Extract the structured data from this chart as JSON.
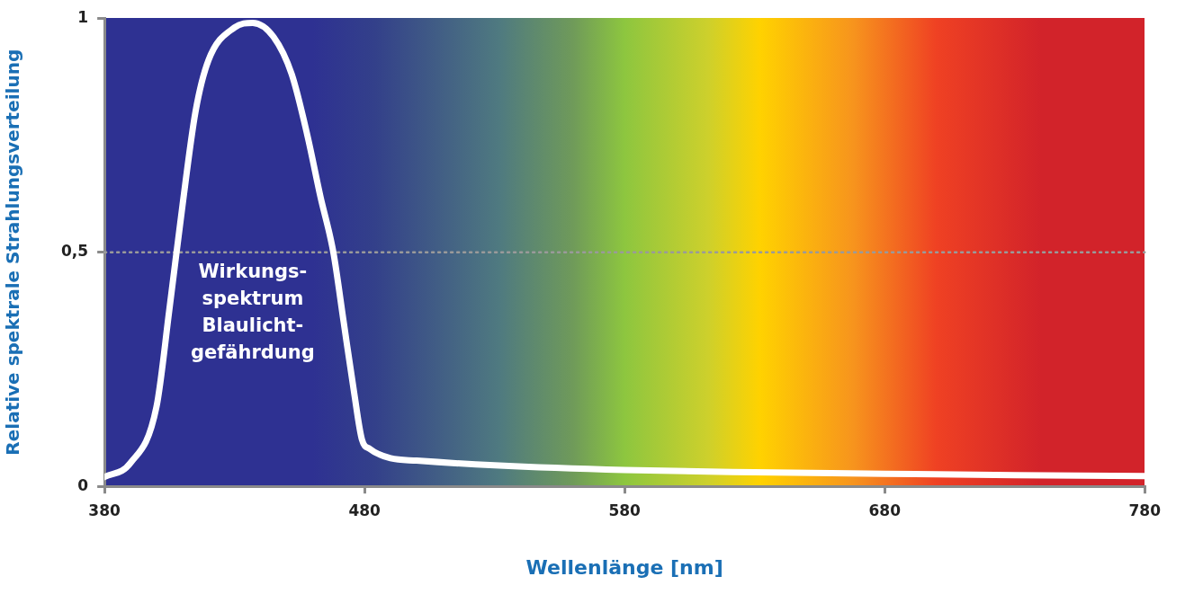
{
  "chart_data": {
    "type": "line",
    "xlabel": "Wellenlänge [nm]",
    "ylabel": "Relative spektrale Strahlungsverteilung",
    "xlim": [
      380,
      780
    ],
    "xticks": [
      380,
      480,
      580,
      680,
      780
    ],
    "ylim": [
      0,
      1
    ],
    "yticks": [
      0,
      {
        "value": 0.5,
        "label": "0,5"
      },
      1
    ],
    "x": [
      380,
      390,
      400,
      405,
      410,
      415,
      420,
      430,
      437,
      445,
      452,
      458,
      463,
      468,
      472,
      476,
      479,
      482,
      490,
      500,
      530,
      580,
      630,
      680,
      730,
      780
    ],
    "series": [
      {
        "color": "#ffffff",
        "values": [
          0.02,
          0.05,
          0.17,
          0.38,
          0.6,
          0.8,
          0.91,
          0.98,
          0.99,
          0.96,
          0.88,
          0.75,
          0.62,
          0.5,
          0.35,
          0.2,
          0.1,
          0.08,
          0.06,
          0.055,
          0.045,
          0.035,
          0.03,
          0.027,
          0.024,
          0.022
        ]
      }
    ],
    "ref_lines": [
      {
        "axis": "y",
        "value": 0.5,
        "color": "#9a9a9a",
        "line_style": "dotted"
      }
    ],
    "annotations": [
      "Wirkungs-\nspektrum\nBlaulicht-\ngefährdung"
    ],
    "grid": false,
    "legend": false,
    "marker": "none",
    "line_style": "solid"
  }
}
